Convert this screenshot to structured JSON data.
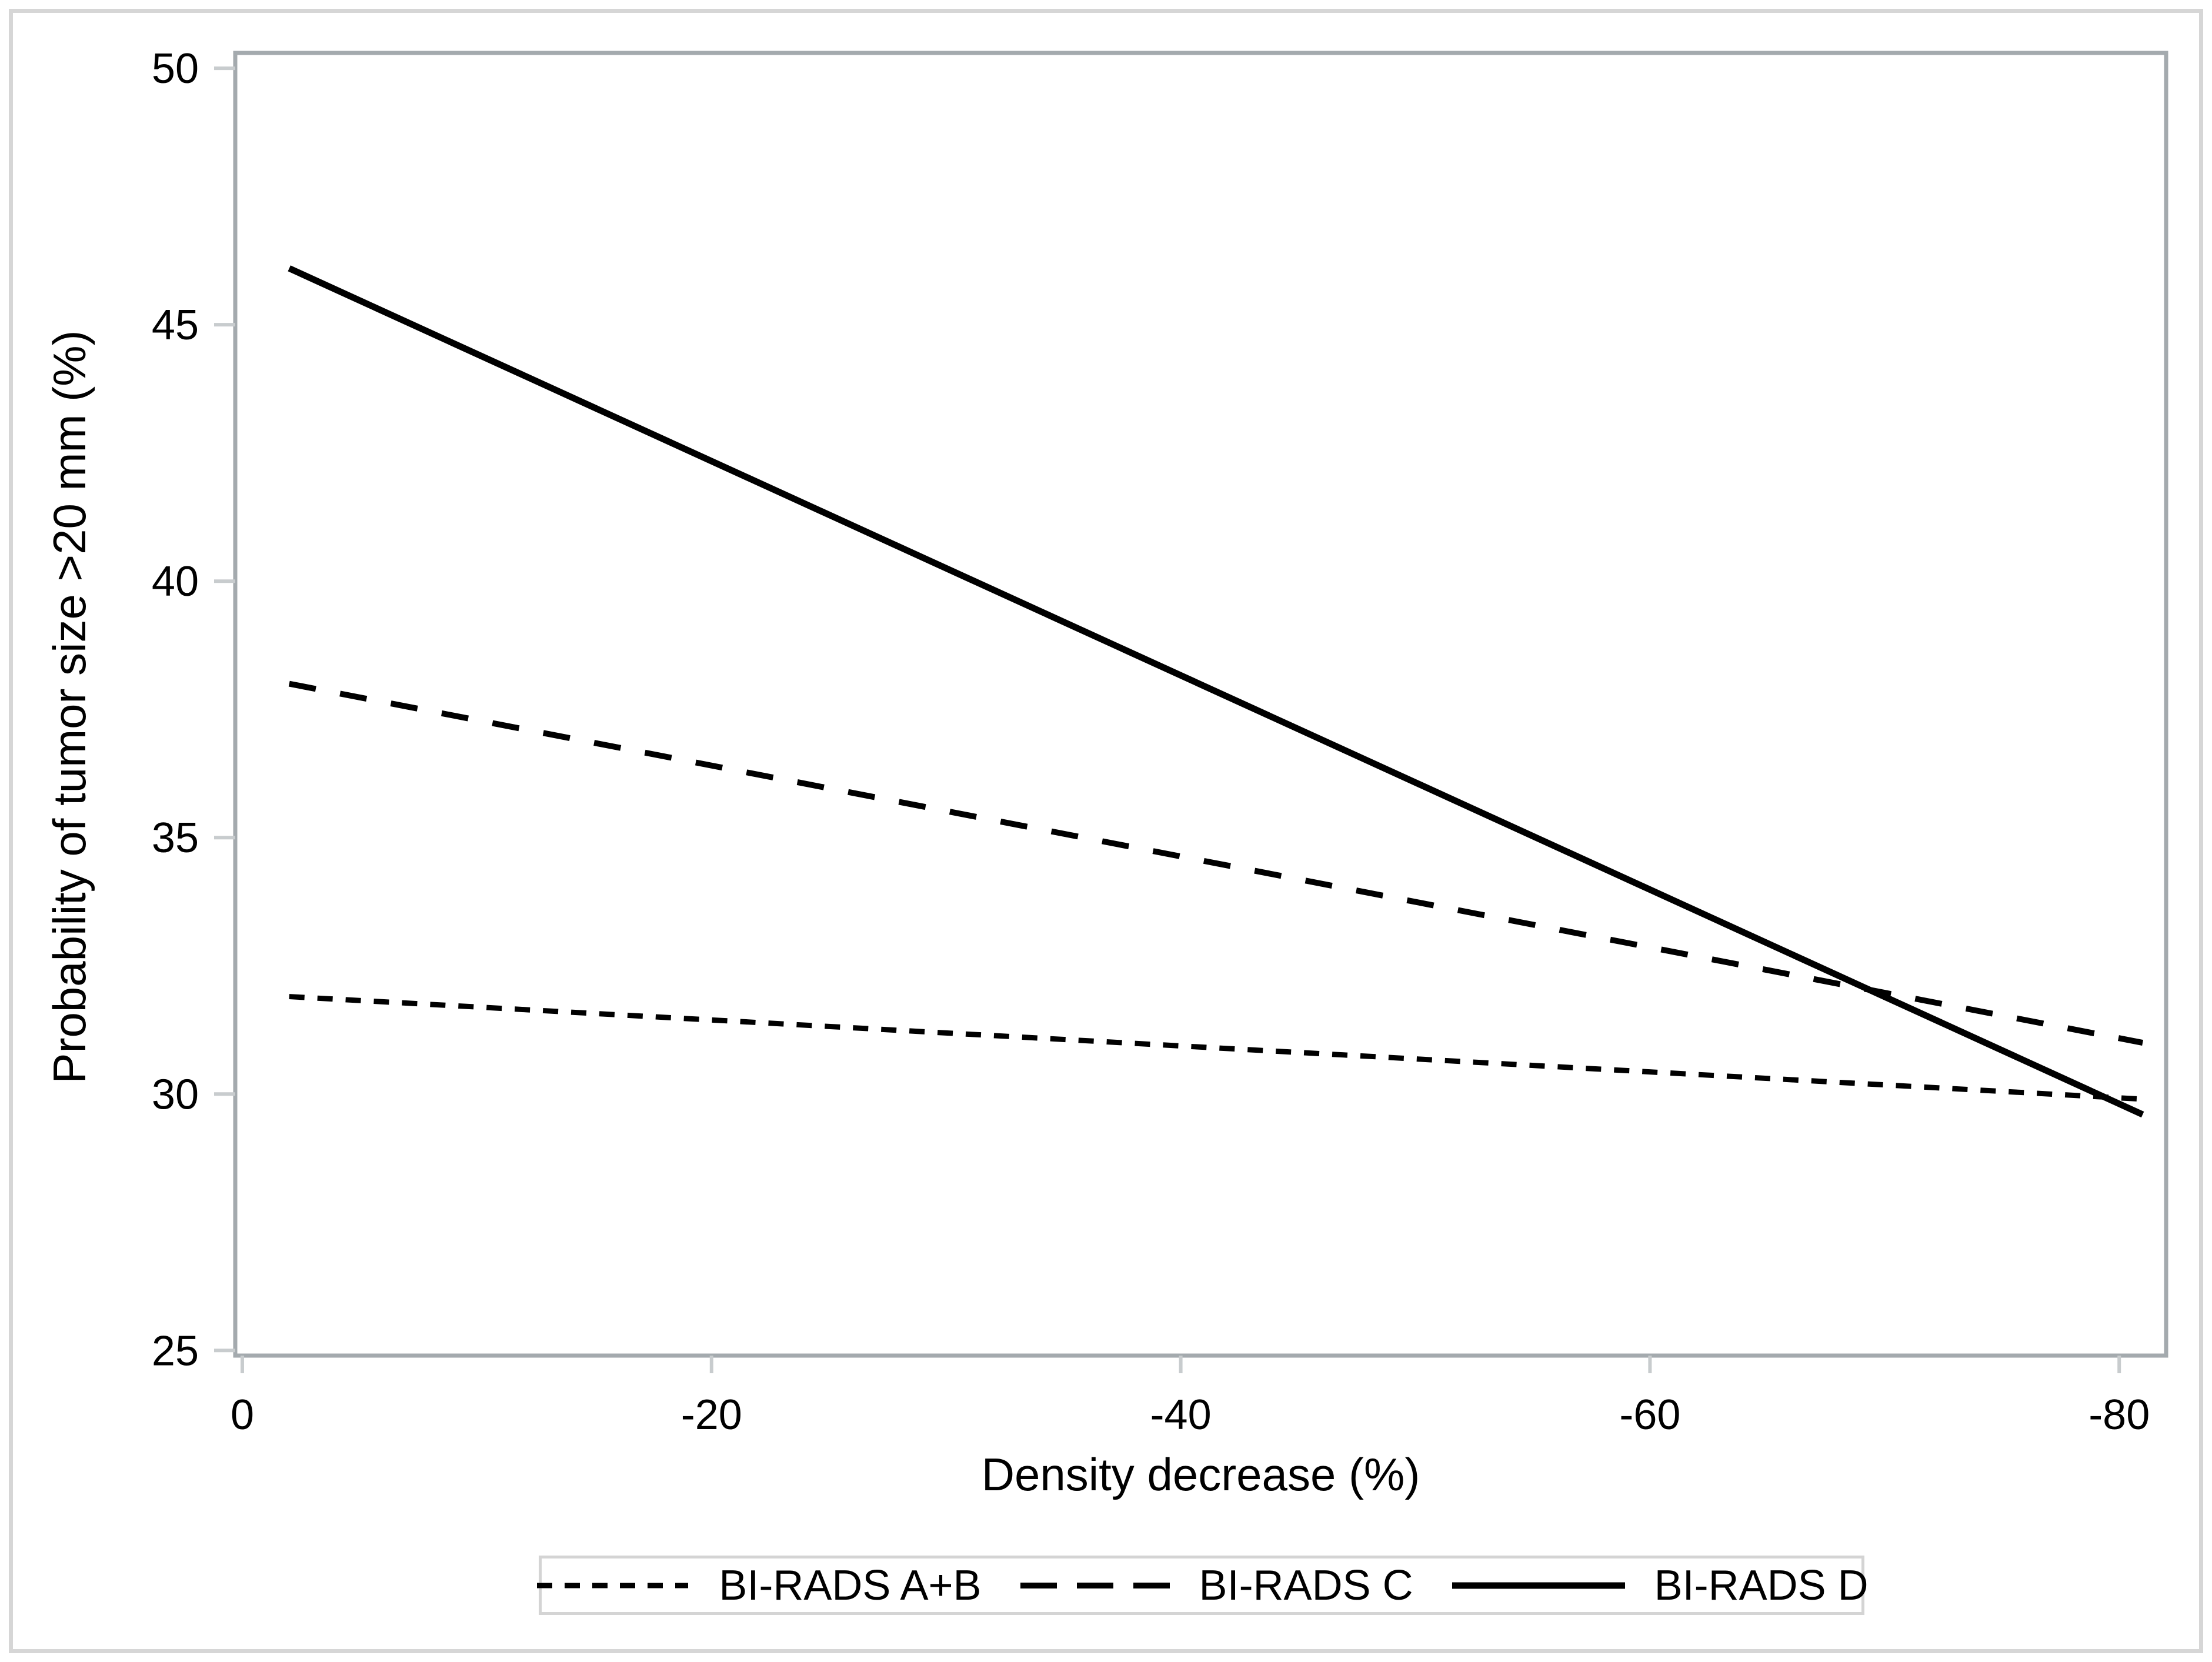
{
  "chart_data": {
    "type": "line",
    "title": "",
    "xlabel": "Density decrease (%)",
    "ylabel": "Probability of tumor size >20 mm (%)",
    "xlim": [
      0.3,
      -82
    ],
    "ylim": [
      24.9,
      50.3
    ],
    "xticks": [
      0,
      -20,
      -40,
      -60,
      -80
    ],
    "xtick_labels": [
      "0",
      "-20",
      "-40",
      "-60",
      "-80"
    ],
    "yticks": [
      25,
      30,
      35,
      40,
      45,
      50
    ],
    "ytick_labels": [
      "25",
      "30",
      "35",
      "40",
      "45",
      "50"
    ],
    "grid": false,
    "legend_position": "bottom-center",
    "series": [
      {
        "name": "BI-RADS A+B",
        "line_style": "dotted",
        "x": [
          -2,
          -81
        ],
        "y": [
          31.9,
          29.9
        ]
      },
      {
        "name": "BI-RADS C",
        "line_style": "dashed",
        "x": [
          -2,
          -81
        ],
        "y": [
          38.0,
          31.0
        ]
      },
      {
        "name": "BI-RADS D",
        "line_style": "solid",
        "x": [
          -2,
          -81
        ],
        "y": [
          46.1,
          29.6
        ]
      }
    ],
    "colors": {
      "series_line": "#000000",
      "plot_frame": "#a4aaae",
      "tick_mark": "#c8ccce",
      "legend_border": "#d4d4d4",
      "outer_border": "#d6d6d6",
      "text": "#000000"
    }
  }
}
